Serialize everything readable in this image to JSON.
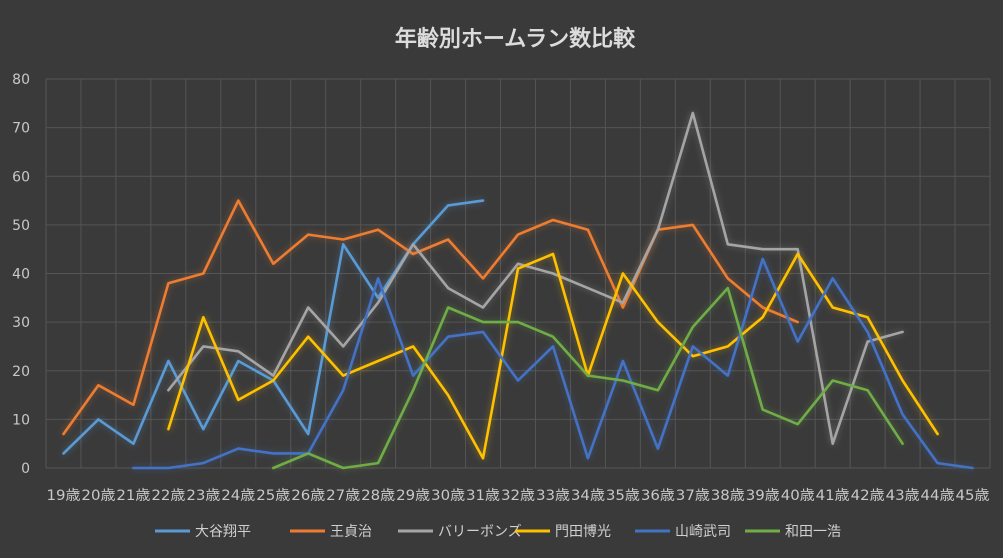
{
  "chart_data": {
    "type": "line",
    "title": "年齢別ホームラン数比較",
    "xlabel": "",
    "ylabel": "",
    "ylim": [
      0,
      80
    ],
    "yticks": [
      0,
      10,
      20,
      30,
      40,
      50,
      60,
      70,
      80
    ],
    "grid": true,
    "legend": "bottom",
    "categories": [
      "19歳",
      "20歳",
      "21歳",
      "22歳",
      "23歳",
      "24歳",
      "25歳",
      "26歳",
      "27歳",
      "28歳",
      "29歳",
      "30歳",
      "31歳",
      "32歳",
      "33歳",
      "34歳",
      "35歳",
      "36歳",
      "37歳",
      "38歳",
      "39歳",
      "40歳",
      "41歳",
      "42歳",
      "43歳",
      "44歳",
      "45歳"
    ],
    "series": [
      {
        "name": "大谷翔平",
        "color": "#5b9bd5",
        "values": [
          3,
          10,
          5,
          22,
          8,
          22,
          18,
          7,
          46,
          35,
          46,
          54,
          55,
          null,
          null,
          null,
          null,
          null,
          null,
          null,
          null,
          null,
          null,
          null,
          null,
          null,
          null
        ]
      },
      {
        "name": "王貞治",
        "color": "#ed7d31",
        "values": [
          7,
          17,
          13,
          38,
          40,
          55,
          42,
          48,
          47,
          49,
          44,
          47,
          39,
          48,
          51,
          49,
          33,
          49,
          50,
          39,
          33,
          30,
          null,
          null,
          null,
          null,
          null
        ]
      },
      {
        "name": "バリーボンズ",
        "color": "#a5a5a5",
        "values": [
          null,
          null,
          null,
          16,
          25,
          24,
          19,
          33,
          25,
          34,
          46,
          37,
          33,
          42,
          40,
          37,
          34,
          49,
          73,
          46,
          45,
          45,
          5,
          26,
          28,
          null,
          null
        ]
      },
      {
        "name": "門田博光",
        "color": "#ffc000",
        "values": [
          null,
          null,
          null,
          8,
          31,
          14,
          18,
          27,
          19,
          22,
          25,
          15,
          2,
          41,
          44,
          19,
          40,
          30,
          23,
          25,
          31,
          44,
          33,
          31,
          18,
          7,
          null
        ]
      },
      {
        "name": "山崎武司",
        "color": "#4472c4",
        "values": [
          null,
          null,
          0,
          0,
          1,
          4,
          3,
          3,
          16,
          39,
          19,
          27,
          28,
          18,
          25,
          2,
          22,
          4,
          25,
          19,
          43,
          26,
          39,
          28,
          11,
          1,
          0
        ]
      },
      {
        "name": "和田一浩",
        "color": "#70ad47",
        "values": [
          null,
          null,
          null,
          null,
          null,
          null,
          0,
          3,
          0,
          1,
          16,
          33,
          30,
          30,
          27,
          19,
          18,
          16,
          29,
          37,
          12,
          9,
          18,
          16,
          5,
          null,
          null
        ]
      }
    ]
  }
}
